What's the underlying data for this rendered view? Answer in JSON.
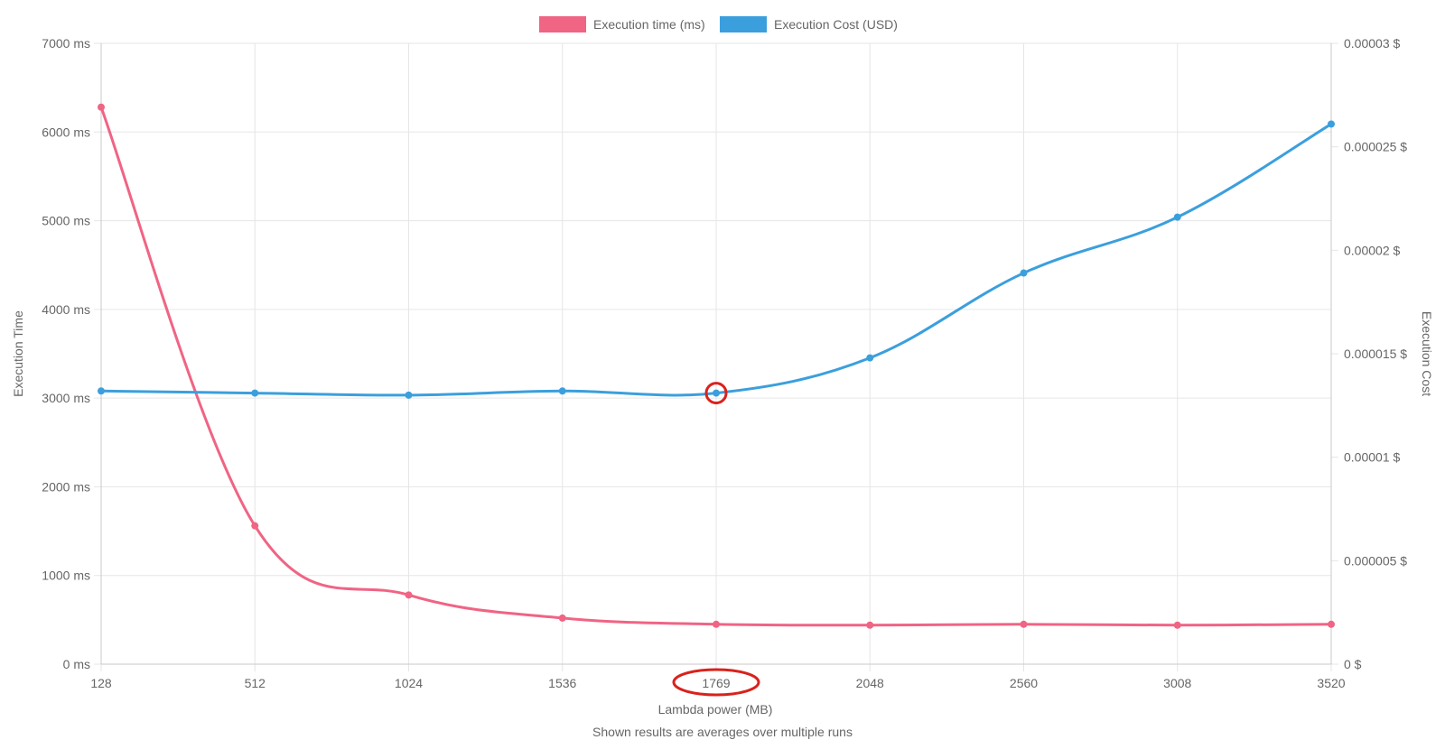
{
  "chart_data": {
    "type": "line",
    "x": [
      128,
      512,
      1024,
      1536,
      1769,
      2048,
      2560,
      3008,
      3520
    ],
    "x_tick_labels": [
      "128",
      "512",
      "1024",
      "1536",
      "1769",
      "2048",
      "2560",
      "3008",
      "3520"
    ],
    "series": [
      {
        "name": "Execution time (ms)",
        "axis": "left",
        "color": "#f06484",
        "values": [
          6280,
          1560,
          780,
          520,
          450,
          440,
          450,
          440,
          450
        ]
      },
      {
        "name": "Execution Cost (USD)",
        "axis": "right",
        "color": "#3b9fdd",
        "values": [
          1.32e-05,
          1.31e-05,
          1.3e-05,
          1.32e-05,
          1.31e-05,
          1.48e-05,
          1.89e-05,
          2.16e-05,
          2.61e-05
        ]
      }
    ],
    "y_left": {
      "label": "Execution Time",
      "range": [
        0,
        7000
      ],
      "ticks": [
        0,
        1000,
        2000,
        3000,
        4000,
        5000,
        6000,
        7000
      ],
      "tick_labels": [
        "0 ms",
        "1000 ms",
        "2000 ms",
        "3000 ms",
        "4000 ms",
        "5000 ms",
        "6000 ms",
        "7000 ms"
      ]
    },
    "y_right": {
      "label": "Execution Cost",
      "range": [
        0,
        3e-05
      ],
      "ticks": [
        0,
        5e-06,
        1e-05,
        1.5e-05,
        2e-05,
        2.5e-05,
        3e-05
      ],
      "tick_labels": [
        "0 $",
        "0.000005 $",
        "0.00001 $",
        "0.000015 $",
        "0.00002 $",
        "0.000025 $",
        "0.00003 $"
      ]
    },
    "xlabel": "Lambda power (MB)",
    "footnote": "Shown results are averages over multiple runs",
    "grid": true,
    "legend_position": "top-center",
    "highlight": {
      "x_value": 1769,
      "series": "Execution Cost (USD)",
      "color": "#d9221c"
    }
  }
}
